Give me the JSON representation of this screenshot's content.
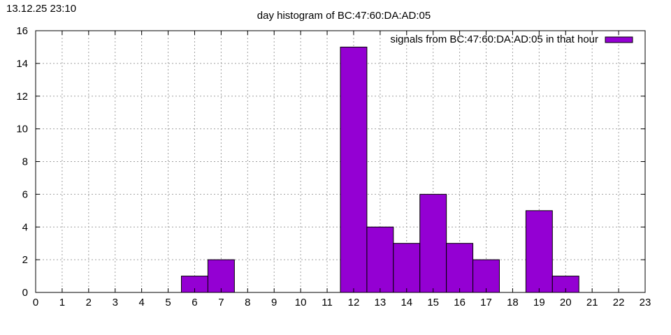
{
  "timestamp": "13.12.25 23:10",
  "chart_data": {
    "type": "bar",
    "title": "day histogram of BC:47:60:DA:AD:05",
    "xlabel": "",
    "ylabel": "",
    "xlim": [
      0,
      23
    ],
    "ylim": [
      0,
      16
    ],
    "x_ticks": [
      0,
      1,
      2,
      3,
      4,
      5,
      6,
      7,
      8,
      9,
      10,
      11,
      12,
      13,
      14,
      15,
      16,
      17,
      18,
      19,
      20,
      21,
      22,
      23
    ],
    "y_ticks": [
      0,
      2,
      4,
      6,
      8,
      10,
      12,
      14,
      16
    ],
    "grid": true,
    "legend_position": "top-right",
    "bar_color": "#9400d3",
    "series": [
      {
        "name": "signals from BC:47:60:DA:AD:05 in that hour",
        "x": [
          6,
          7,
          12,
          13,
          14,
          15,
          16,
          17,
          19,
          20
        ],
        "values": [
          1,
          2,
          15,
          4,
          3,
          6,
          3,
          2,
          5,
          1
        ]
      }
    ]
  }
}
